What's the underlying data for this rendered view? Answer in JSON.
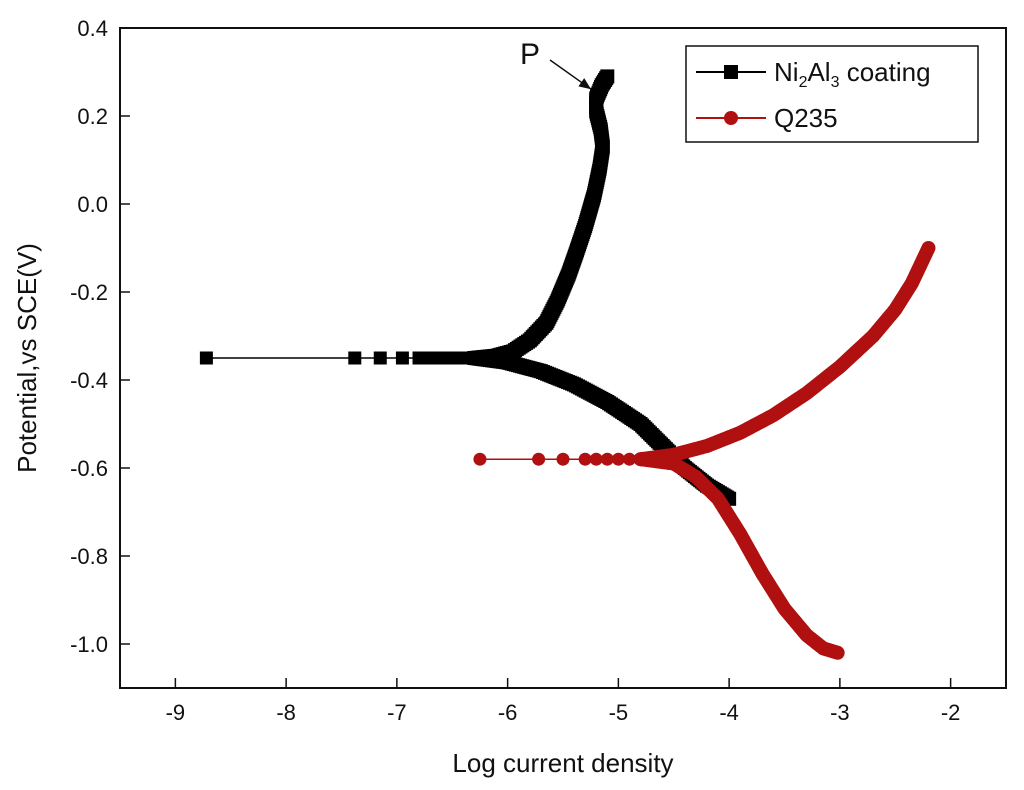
{
  "chart_data": {
    "type": "scatter",
    "xlabel": "Log current density",
    "ylabel": "Potential,vs SCE(V)",
    "xlim": [
      -9.5,
      -1.5
    ],
    "ylim": [
      -1.1,
      0.4
    ],
    "xticks": [
      "-9",
      "-8",
      "-7",
      "-6",
      "-5",
      "-4",
      "-3",
      "-2"
    ],
    "yticks": [
      "0.4",
      "0.2",
      "0.0",
      "-0.2",
      "-0.4",
      "-0.6",
      "-0.8",
      "-1.0"
    ],
    "legend_position": "top-right",
    "annotation": {
      "text": "P",
      "x": -5.12,
      "y": 0.27
    },
    "series": [
      {
        "name": "Ni2Al3 coating",
        "name_parts": [
          "Ni",
          "2",
          "Al",
          "3",
          " coating"
        ],
        "color": "#000000",
        "marker": "square",
        "points": [
          [
            -8.72,
            -0.35
          ],
          [
            -7.38,
            -0.35
          ],
          [
            -7.15,
            -0.35
          ],
          [
            -6.95,
            -0.35
          ],
          [
            -6.8,
            -0.35
          ],
          [
            -6.7,
            -0.35
          ],
          [
            -6.6,
            -0.35
          ],
          [
            -6.5,
            -0.35
          ],
          [
            -6.4,
            -0.35
          ],
          [
            -6.3,
            -0.35
          ]
        ],
        "anodic": [
          [
            -6.3,
            -0.35
          ],
          [
            -6.1,
            -0.345
          ],
          [
            -5.95,
            -0.335
          ],
          [
            -5.8,
            -0.31
          ],
          [
            -5.65,
            -0.27
          ],
          [
            -5.55,
            -0.22
          ],
          [
            -5.45,
            -0.16
          ],
          [
            -5.38,
            -0.11
          ],
          [
            -5.3,
            -0.05
          ],
          [
            -5.22,
            0.02
          ],
          [
            -5.17,
            0.08
          ],
          [
            -5.14,
            0.13
          ],
          [
            -5.16,
            0.17
          ],
          [
            -5.2,
            0.21
          ],
          [
            -5.2,
            0.24
          ],
          [
            -5.15,
            0.27
          ],
          [
            -5.1,
            0.29
          ]
        ],
        "cathodic": [
          [
            -6.3,
            -0.35
          ],
          [
            -6.0,
            -0.36
          ],
          [
            -5.7,
            -0.38
          ],
          [
            -5.4,
            -0.41
          ],
          [
            -5.1,
            -0.45
          ],
          [
            -4.8,
            -0.5
          ],
          [
            -4.6,
            -0.55
          ],
          [
            -4.4,
            -0.6
          ],
          [
            -4.2,
            -0.64
          ],
          [
            -4.0,
            -0.67
          ]
        ]
      },
      {
        "name": "Q235",
        "color": "#b01010",
        "marker": "circle",
        "points": [
          [
            -6.25,
            -0.58
          ],
          [
            -5.72,
            -0.58
          ],
          [
            -5.5,
            -0.58
          ],
          [
            -5.3,
            -0.58
          ],
          [
            -5.2,
            -0.58
          ],
          [
            -5.1,
            -0.58
          ],
          [
            -5.0,
            -0.58
          ],
          [
            -4.9,
            -0.58
          ],
          [
            -4.8,
            -0.58
          ]
        ],
        "anodic": [
          [
            -4.8,
            -0.58
          ],
          [
            -4.5,
            -0.57
          ],
          [
            -4.2,
            -0.55
          ],
          [
            -3.9,
            -0.52
          ],
          [
            -3.6,
            -0.48
          ],
          [
            -3.3,
            -0.43
          ],
          [
            -3.0,
            -0.37
          ],
          [
            -2.7,
            -0.3
          ],
          [
            -2.5,
            -0.24
          ],
          [
            -2.35,
            -0.18
          ],
          [
            -2.2,
            -0.1
          ]
        ],
        "cathodic": [
          [
            -4.8,
            -0.58
          ],
          [
            -4.5,
            -0.59
          ],
          [
            -4.3,
            -0.62
          ],
          [
            -4.1,
            -0.67
          ],
          [
            -3.9,
            -0.75
          ],
          [
            -3.7,
            -0.84
          ],
          [
            -3.5,
            -0.92
          ],
          [
            -3.3,
            -0.98
          ],
          [
            -3.15,
            -1.01
          ],
          [
            -3.02,
            -1.02
          ]
        ]
      }
    ]
  }
}
